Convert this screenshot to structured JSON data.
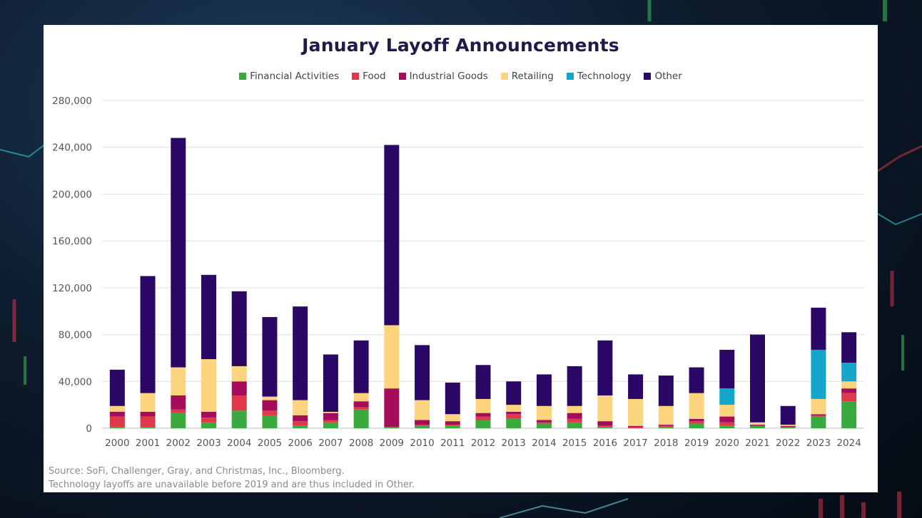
{
  "colors": {
    "Financial Activities": "#3aaa3f",
    "Food": "#e0374a",
    "Industrial Goods": "#a50d5a",
    "Retailing": "#fdd47e",
    "Technology": "#13a6c9",
    "Other": "#2b0766"
  },
  "footnotes": [
    "Source: SoFi, Challenger, Gray, and Christmas, Inc., Bloomberg.",
    "Technology layoffs are unavailable before 2019 and are thus included in Other."
  ],
  "chart_data": {
    "type": "bar",
    "stacked": true,
    "title": "January Layoff Announcements",
    "xlabel": "",
    "ylabel": "",
    "ylim": [
      0,
      280000
    ],
    "yticks": [
      0,
      40000,
      80000,
      120000,
      160000,
      200000,
      240000,
      280000
    ],
    "ytick_labels": [
      "0",
      "40,000",
      "80,000",
      "120,000",
      "160,000",
      "200,000",
      "240,000",
      "280,000"
    ],
    "grid": true,
    "legend_position": "top",
    "categories": [
      "2000",
      "2001",
      "2002",
      "2003",
      "2004",
      "2005",
      "2006",
      "2007",
      "2008",
      "2009",
      "2010",
      "2011",
      "2012",
      "2013",
      "2014",
      "2015",
      "2016",
      "2017",
      "2018",
      "2019",
      "2020",
      "2021",
      "2022",
      "2023",
      "2024"
    ],
    "series": [
      {
        "name": "Financial Activities",
        "values": [
          1000,
          1000,
          13000,
          5000,
          15000,
          11000,
          2000,
          5000,
          16000,
          1000,
          2000,
          2000,
          7000,
          8000,
          4000,
          5000,
          1000,
          0,
          1000,
          4000,
          2000,
          2000,
          1000,
          10000,
          23000
        ]
      },
      {
        "name": "Food",
        "values": [
          9000,
          9000,
          3000,
          4000,
          13000,
          4000,
          4000,
          2000,
          2000,
          0,
          1000,
          1000,
          3000,
          4000,
          1000,
          3000,
          1000,
          1000,
          1000,
          2000,
          3000,
          0,
          0,
          1000,
          7000
        ]
      },
      {
        "name": "Industrial Goods",
        "values": [
          4000,
          4000,
          12000,
          5000,
          12000,
          9000,
          5000,
          6000,
          5000,
          33000,
          4000,
          3000,
          3000,
          2000,
          2000,
          5000,
          4000,
          1000,
          1000,
          2000,
          5000,
          1000,
          1000,
          1000,
          4000
        ]
      },
      {
        "name": "Retailing",
        "values": [
          5000,
          16000,
          24000,
          45000,
          13000,
          3000,
          13000,
          1000,
          7000,
          54000,
          17000,
          6000,
          12000,
          6000,
          12000,
          6000,
          22000,
          23000,
          16000,
          22000,
          10000,
          2000,
          1000,
          13000,
          6000
        ]
      },
      {
        "name": "Technology",
        "values": [
          0,
          0,
          0,
          0,
          0,
          0,
          0,
          0,
          0,
          0,
          0,
          0,
          0,
          0,
          0,
          0,
          0,
          0,
          0,
          0,
          14000,
          0,
          0,
          42000,
          16000
        ]
      },
      {
        "name": "Other",
        "values": [
          31000,
          100000,
          196000,
          72000,
          64000,
          68000,
          80000,
          49000,
          45000,
          154000,
          47000,
          27000,
          29000,
          20000,
          27000,
          34000,
          47000,
          21000,
          26000,
          22000,
          33000,
          75000,
          16000,
          36000,
          26000
        ]
      }
    ]
  }
}
